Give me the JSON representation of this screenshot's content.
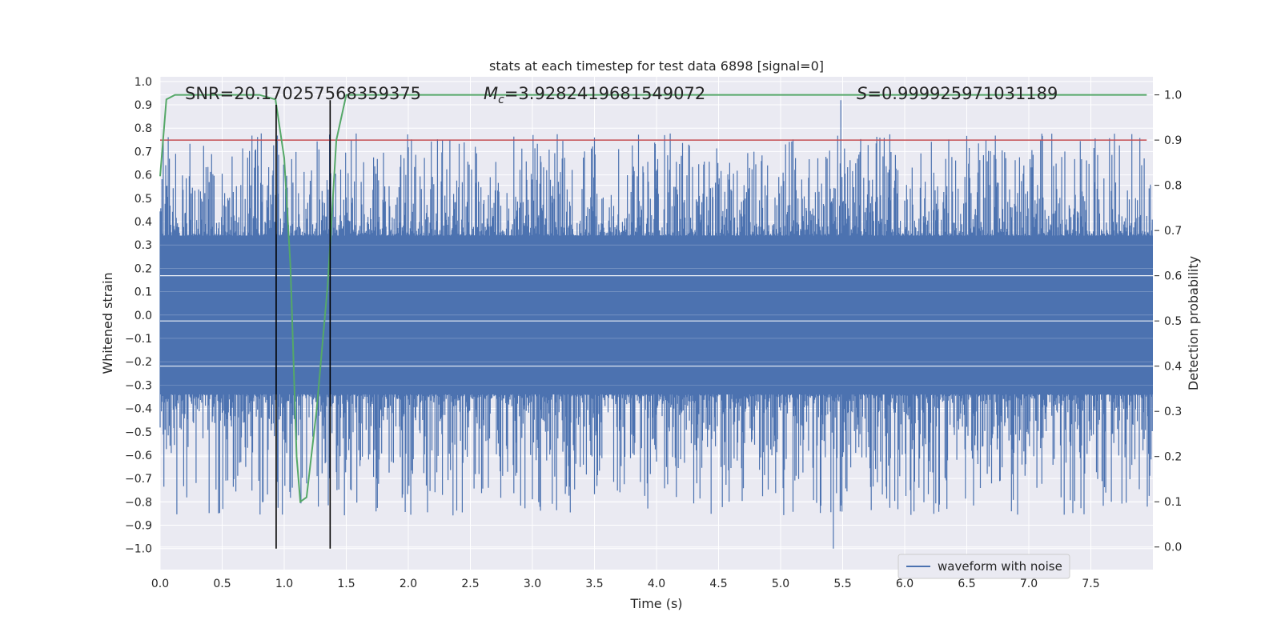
{
  "chart_data": {
    "type": "line",
    "title": "stats at each timestep for test data 6898 [signal=0]",
    "xlabel": "Time (s)",
    "ylabel": "Whitened strain",
    "y2label": "Detection probability",
    "xlim": [
      0.0,
      8.0
    ],
    "ylim": [
      -1.09,
      1.02
    ],
    "y2lim": [
      -0.05,
      1.04
    ],
    "xticks": [
      "0.0",
      "0.5",
      "1.0",
      "1.5",
      "2.0",
      "2.5",
      "3.0",
      "3.5",
      "4.0",
      "4.5",
      "5.0",
      "5.5",
      "6.0",
      "6.5",
      "7.0",
      "7.5"
    ],
    "xtick_values": [
      0.0,
      0.5,
      1.0,
      1.5,
      2.0,
      2.5,
      3.0,
      3.5,
      4.0,
      4.5,
      5.0,
      5.5,
      6.0,
      6.5,
      7.0,
      7.5
    ],
    "yticks": [
      "1.0",
      "0.9",
      "0.8",
      "0.7",
      "0.6",
      "0.5",
      "0.4",
      "0.3",
      "0.2",
      "0.1",
      "0.0",
      "−0.1",
      "−0.2",
      "−0.3",
      "−0.4",
      "−0.5",
      "−0.6",
      "−0.7",
      "−0.8",
      "−0.9",
      "−1.0"
    ],
    "ytick_values": [
      1.0,
      0.9,
      0.8,
      0.7,
      0.6,
      0.5,
      0.4,
      0.3,
      0.2,
      0.1,
      0.0,
      -0.1,
      -0.2,
      -0.3,
      -0.4,
      -0.5,
      -0.6,
      -0.7,
      -0.8,
      -0.9,
      -1.0
    ],
    "y2ticks": [
      "1.0",
      "0.9",
      "0.8",
      "0.7",
      "0.6",
      "0.5",
      "0.4",
      "0.3",
      "0.2",
      "0.1",
      "0.0"
    ],
    "y2tick_values": [
      1.0,
      0.9,
      0.8,
      0.7,
      0.6,
      0.5,
      0.4,
      0.3,
      0.2,
      0.1,
      0.0
    ],
    "annotations": {
      "snr": "SNR=20.170257568359375",
      "mc_symbol": "M",
      "mc_sub": "c",
      "mc_value": "=3.9282419681549072",
      "s_symbol": "S",
      "s_value": "=0.999925971031189"
    },
    "legend": {
      "label": "waveform with noise",
      "placement": "lower-right"
    },
    "threshold": {
      "value": 0.9,
      "axis": "right",
      "color": "#c44e52"
    },
    "vlines": [
      {
        "x": 0.935,
        "ymin": -1.0,
        "ymax": 0.9
      },
      {
        "x": 1.37,
        "ymin": -1.0,
        "ymax": 0.92
      }
    ],
    "waveform": {
      "name": "waveform with noise",
      "color": "#4c72b0",
      "t_start": 0.0,
      "t_end": 8.0,
      "samples": 1600,
      "core_amplitude": 0.34,
      "max": 0.92,
      "min": -1.0
    },
    "probability": {
      "name": "detection probability",
      "color": "#55a868",
      "x": [
        0.0,
        0.05,
        0.12,
        0.5,
        0.8,
        0.93,
        1.0,
        1.05,
        1.1,
        1.13,
        1.18,
        1.26,
        1.35,
        1.42,
        1.5,
        2.0,
        3.0,
        4.0,
        5.0,
        5.3,
        6.0,
        7.0,
        7.95
      ],
      "y": [
        0.82,
        0.99,
        1.0,
        1.0,
        1.0,
        0.99,
        0.86,
        0.62,
        0.2,
        0.1,
        0.11,
        0.3,
        0.58,
        0.9,
        1.0,
        1.0,
        1.0,
        1.0,
        1.0,
        1.0,
        1.0,
        1.0,
        1.0
      ]
    },
    "colors": {
      "background": "#eaeaf2",
      "grid": "#ffffff",
      "text": "#262626"
    }
  }
}
